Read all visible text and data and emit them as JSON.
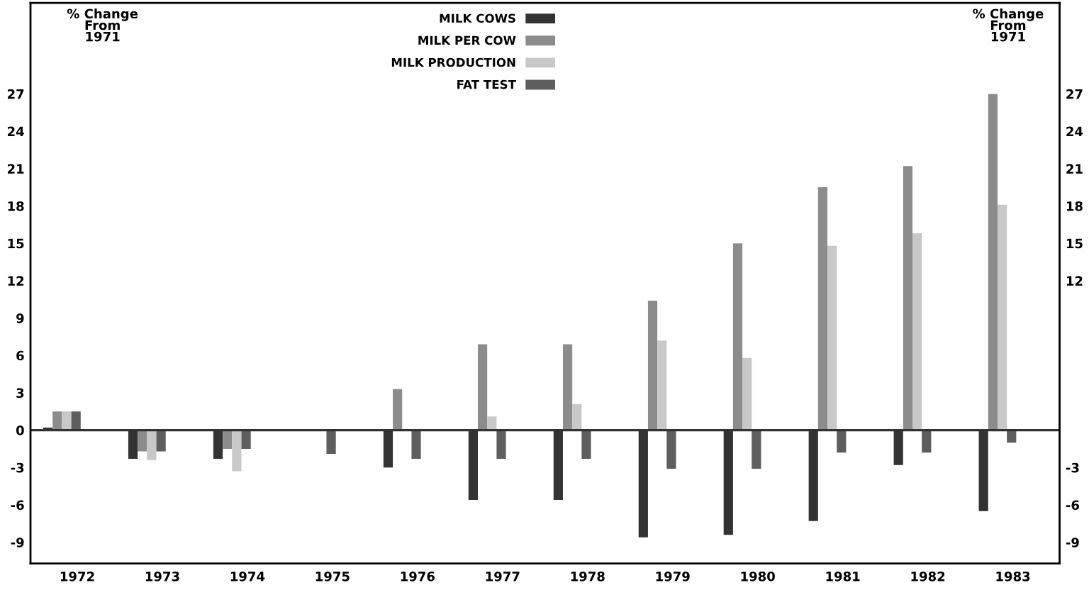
{
  "chart_data": {
    "type": "bar",
    "ylabel": "% Change\nFrom\n1971",
    "y2label": "% Change\nFrom\n1971",
    "categories": [
      "1972",
      "1973",
      "1974",
      "1975",
      "1976",
      "1977",
      "1978",
      "1979",
      "1980",
      "1981",
      "1982",
      "1983"
    ],
    "series": [
      {
        "name": "MILK COWS",
        "color": "#333333",
        "values": [
          0.2,
          -2.3,
          -2.3,
          0,
          -3.0,
          -5.6,
          -5.6,
          -8.6,
          -8.4,
          -7.3,
          -2.8,
          -6.5
        ]
      },
      {
        "name": "MILK PER COW",
        "color": "#8c8c8c",
        "values": [
          1.5,
          -1.7,
          -1.5,
          0,
          3.3,
          6.9,
          6.9,
          10.4,
          15.0,
          19.5,
          21.2,
          27.0
        ]
      },
      {
        "name": "MILK PRODUCTION",
        "color": "#c8c8c8",
        "values": [
          1.5,
          -2.4,
          -3.3,
          0,
          0,
          1.1,
          2.1,
          7.2,
          5.8,
          14.8,
          15.8,
          18.1
        ]
      },
      {
        "name": "FAT TEST",
        "color": "#5e5e5e",
        "values": [
          1.5,
          -1.7,
          -1.5,
          -1.9,
          -2.3,
          -2.3,
          -2.3,
          -3.1,
          -3.1,
          -1.8,
          -1.8,
          -1.0
        ]
      }
    ],
    "ylim": [
      -10.7,
      34.3
    ],
    "yticks": [
      -9,
      -6,
      -3,
      0,
      3,
      6,
      9,
      12,
      15,
      18,
      21,
      24,
      27
    ],
    "y2lim": [
      -10.7,
      34.3
    ],
    "y2ticks": [
      -9,
      -6,
      -3,
      12,
      15,
      18,
      21,
      24,
      27
    ],
    "ref_lines": [
      {
        "axis": "y",
        "value": 0,
        "color": "#333333"
      }
    ],
    "grid": false,
    "legend": "top"
  }
}
